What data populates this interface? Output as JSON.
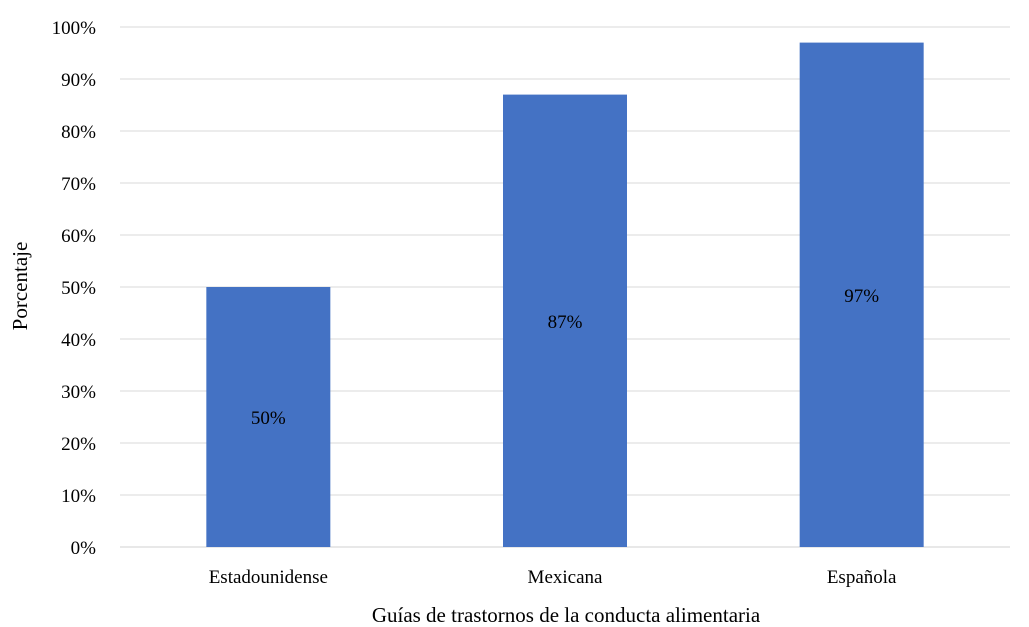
{
  "chart_data": {
    "type": "bar",
    "title": "",
    "xlabel": "Guías de trastornos de la conducta alimentaria",
    "ylabel": "Porcentaje",
    "categories": [
      "Estadounidense",
      "Mexicana",
      "Española"
    ],
    "values": [
      50,
      87,
      97
    ],
    "data_labels": [
      "50%",
      "87%",
      "97%"
    ],
    "ylim": [
      0,
      100
    ],
    "y_ticks": [
      0,
      10,
      20,
      30,
      40,
      50,
      60,
      70,
      80,
      90,
      100
    ],
    "y_tick_labels": [
      "0%",
      "10%",
      "20%",
      "30%",
      "40%",
      "50%",
      "60%",
      "70%",
      "80%",
      "90%",
      "100%"
    ],
    "grid": true,
    "legend": "none",
    "bar_color": "#4472c4",
    "grid_color": "#d9d9d9"
  }
}
